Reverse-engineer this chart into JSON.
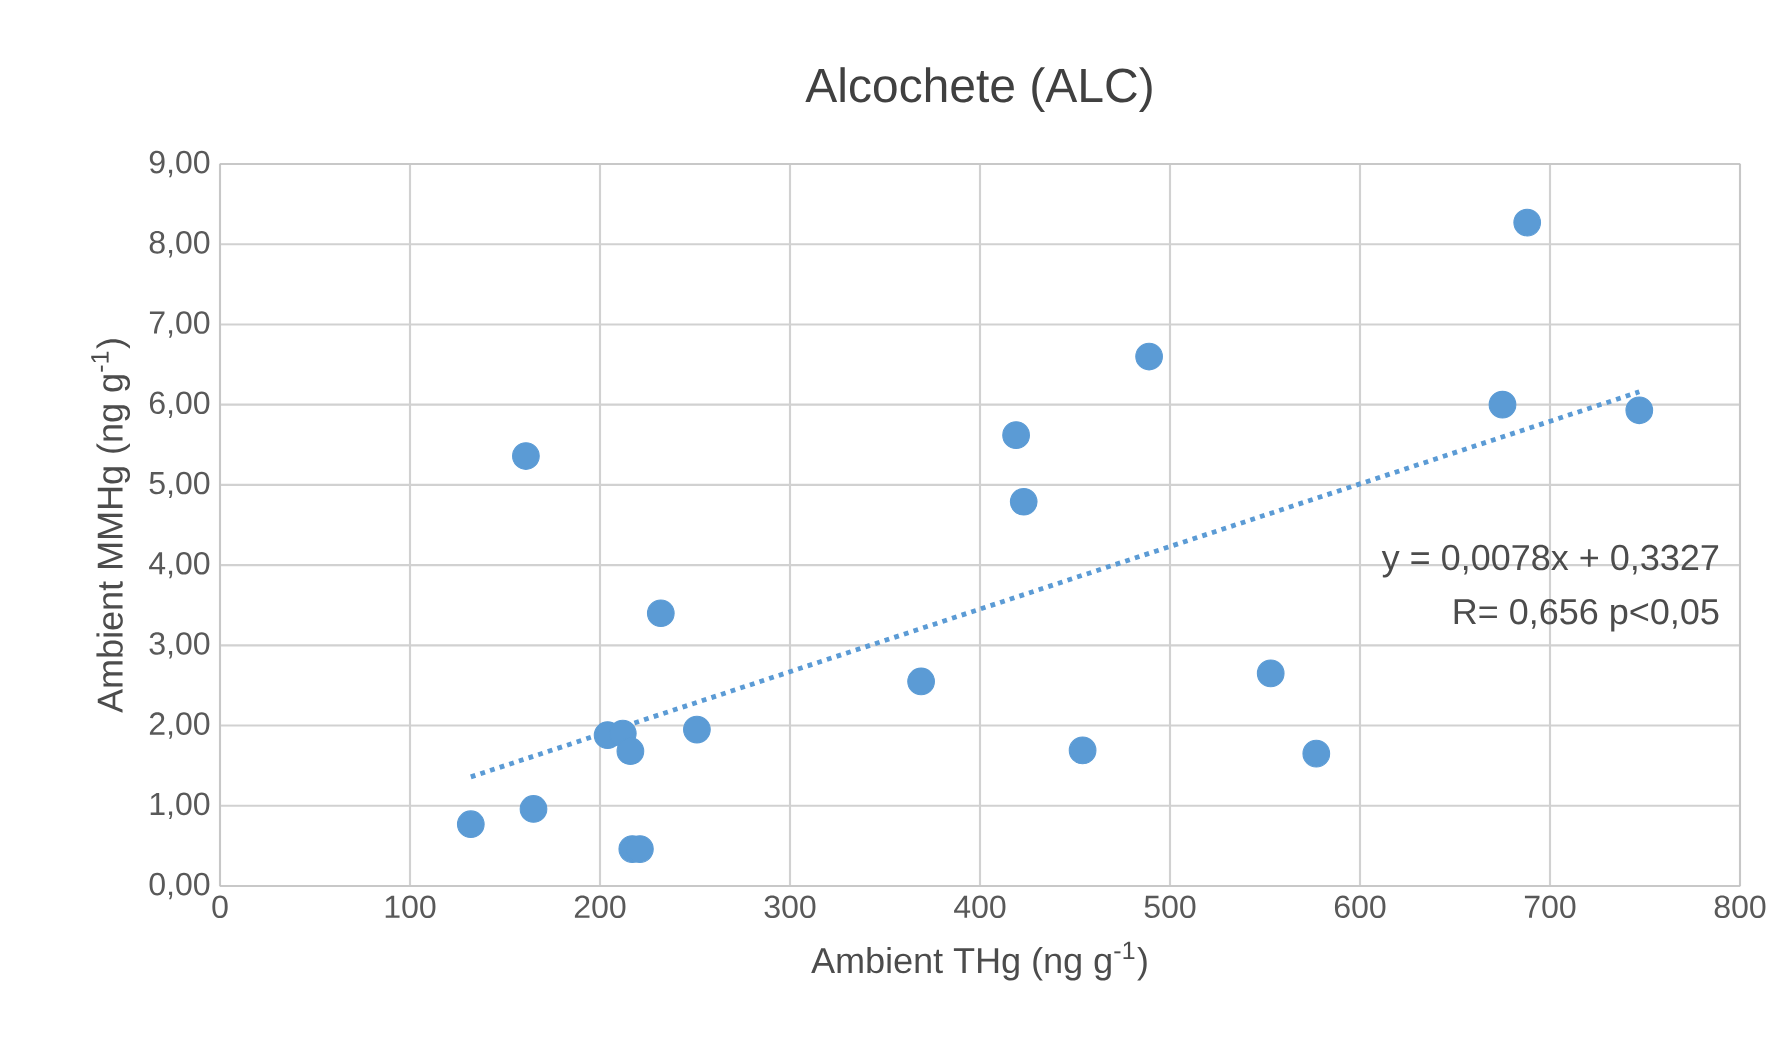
{
  "chart_data": {
    "type": "scatter",
    "title": "Alcochete (ALC)",
    "xlabel": "Ambient THg (ng g$^{-1}$)",
    "ylabel": "Ambient MMHg (ng g$^{-1}$)",
    "annotations": [
      "y = 0,0078x + 0,3327",
      "R= 0,656 p<0,05"
    ],
    "series": [
      {
        "color": "#5b9bd5",
        "marker": "circle",
        "x": [
          132,
          165,
          161,
          232,
          204,
          212,
          216,
          251,
          217,
          221,
          369,
          419,
          423,
          454,
          489,
          553,
          577,
          675,
          688,
          747
        ],
        "values": [
          0.77,
          0.96,
          5.36,
          3.4,
          1.88,
          1.9,
          1.68,
          1.95,
          0.46,
          0.46,
          2.55,
          5.62,
          4.79,
          1.69,
          6.6,
          2.65,
          1.65,
          6.0,
          8.27,
          5.93
        ]
      },
      {
        "type": "line",
        "color": "#5b9bd5",
        "line_style": "dotted",
        "marker": "none",
        "x": [
          132,
          747
        ],
        "values": [
          1.36,
          6.16
        ]
      }
    ],
    "xlim": [
      0,
      800
    ],
    "xticks": [
      0,
      100,
      200,
      300,
      400,
      500,
      600,
      700,
      800
    ],
    "ylim": [
      0,
      9
    ],
    "yticks": [
      {
        "value": 0,
        "label": "0,00"
      },
      {
        "value": 1,
        "label": "1,00"
      },
      {
        "value": 2,
        "label": "2,00"
      },
      {
        "value": 3,
        "label": "3,00"
      },
      {
        "value": 4,
        "label": "4,00"
      },
      {
        "value": 5,
        "label": "5,00"
      },
      {
        "value": 6,
        "label": "6,00"
      },
      {
        "value": 7,
        "label": "7,00"
      },
      {
        "value": 8,
        "label": "8,00"
      },
      {
        "value": 9,
        "label": "9,00"
      }
    ],
    "grid": true
  }
}
